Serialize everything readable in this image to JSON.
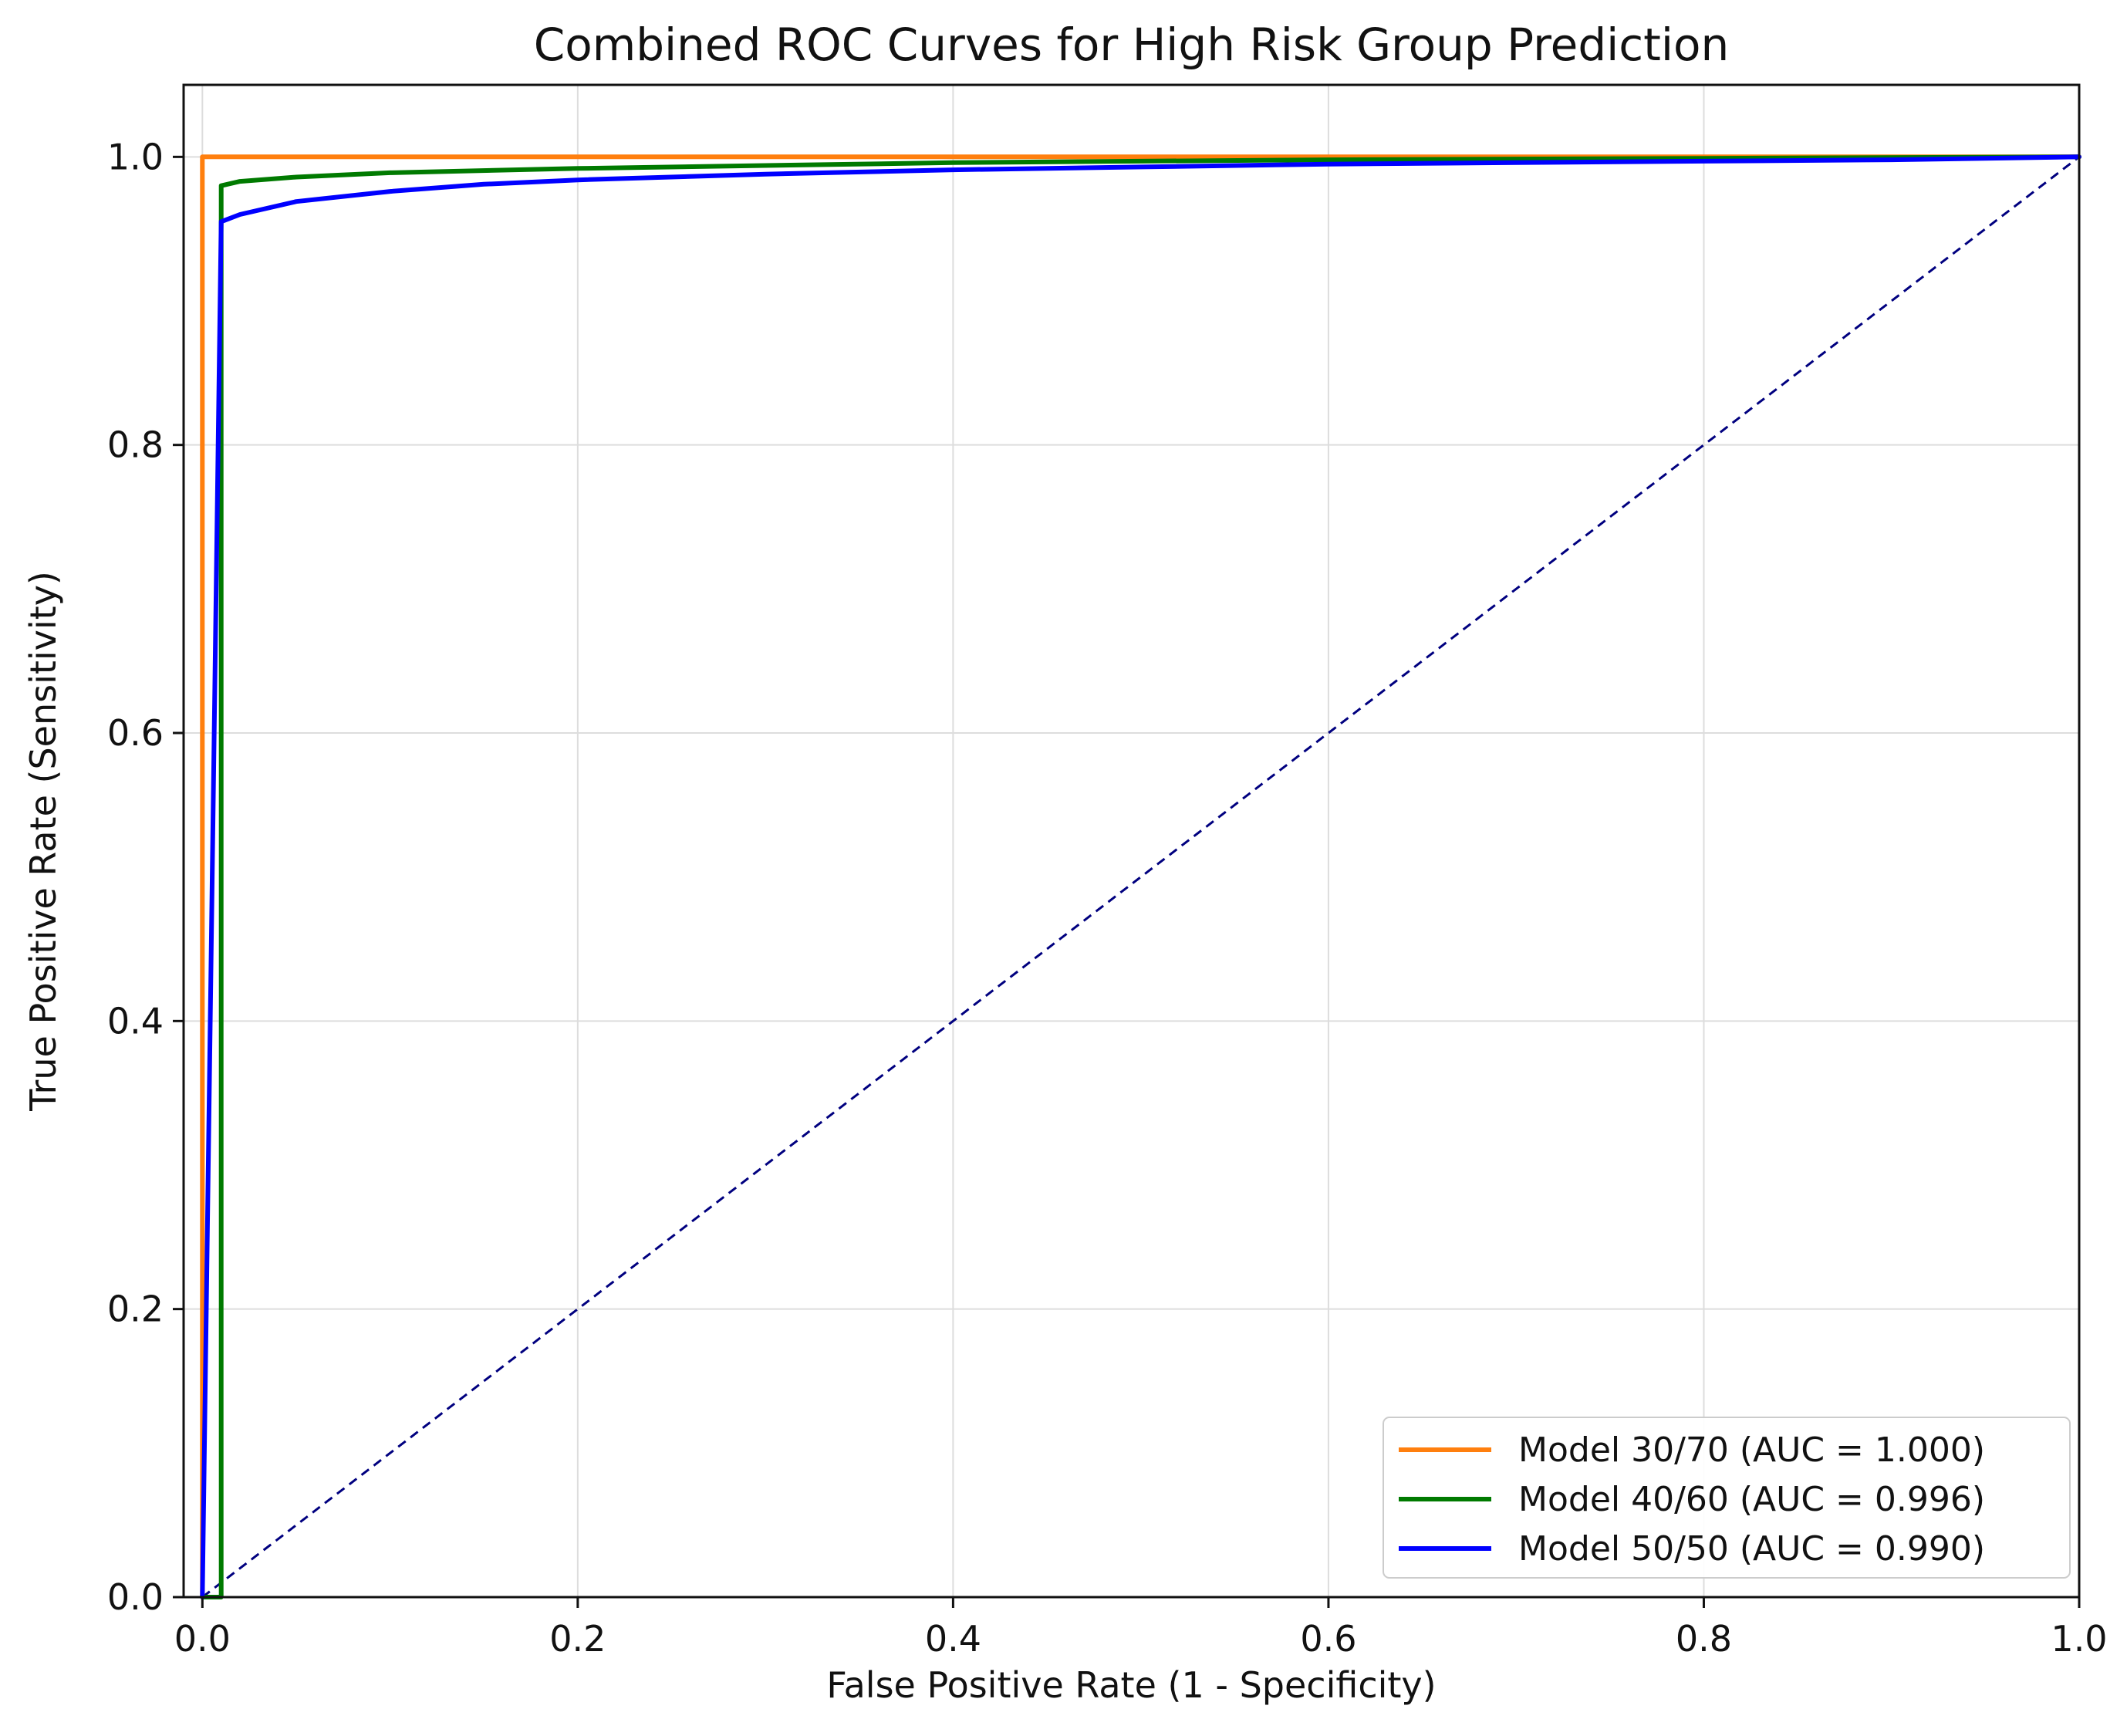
{
  "chart_data": {
    "type": "line",
    "title": "Combined ROC Curves for High Risk Group Prediction",
    "xlabel": "False Positive Rate (1 - Specificity)",
    "ylabel": "True Positive Rate (Sensitivity)",
    "xlim": [
      -0.01,
      1.0
    ],
    "ylim": [
      0.0,
      1.05
    ],
    "xticks": [
      "0.0",
      "0.2",
      "0.4",
      "0.6",
      "0.8",
      "1.0"
    ],
    "yticks": [
      "0.0",
      "0.2",
      "0.4",
      "0.6",
      "0.8",
      "1.0"
    ],
    "grid": true,
    "legend_position": "lower-right",
    "series": [
      {
        "name": "Model 30/70 (AUC = 1.000)",
        "color": "#ff7f0e",
        "points": [
          [
            0.0,
            0.0
          ],
          [
            0.0,
            1.0
          ],
          [
            1.0,
            1.0
          ]
        ]
      },
      {
        "name": "Model 40/60 (AUC = 0.996)",
        "color": "#007a00",
        "points": [
          [
            0.0,
            0.0
          ],
          [
            0.01,
            0.0
          ],
          [
            0.01,
            0.98
          ],
          [
            0.02,
            0.983
          ],
          [
            0.05,
            0.986
          ],
          [
            0.1,
            0.989
          ],
          [
            0.2,
            0.992
          ],
          [
            0.3,
            0.994
          ],
          [
            0.4,
            0.996
          ],
          [
            0.5,
            0.997
          ],
          [
            0.6,
            0.998
          ],
          [
            0.8,
            0.999
          ],
          [
            1.0,
            1.0
          ]
        ]
      },
      {
        "name": "Model 50/50 (AUC = 0.990)",
        "color": "#0000ff",
        "points": [
          [
            0.0,
            0.0
          ],
          [
            0.01,
            0.955
          ],
          [
            0.02,
            0.96
          ],
          [
            0.05,
            0.969
          ],
          [
            0.1,
            0.976
          ],
          [
            0.15,
            0.981
          ],
          [
            0.2,
            0.984
          ],
          [
            0.3,
            0.988
          ],
          [
            0.4,
            0.991
          ],
          [
            0.5,
            0.993
          ],
          [
            0.6,
            0.995
          ],
          [
            0.7,
            0.996
          ],
          [
            0.8,
            0.997
          ],
          [
            0.9,
            0.998
          ],
          [
            1.0,
            1.0
          ]
        ]
      }
    ],
    "reference_line": {
      "points": [
        [
          0.0,
          0.0
        ],
        [
          1.0,
          1.0
        ]
      ],
      "color": "#00007f",
      "style": "dashed"
    }
  }
}
